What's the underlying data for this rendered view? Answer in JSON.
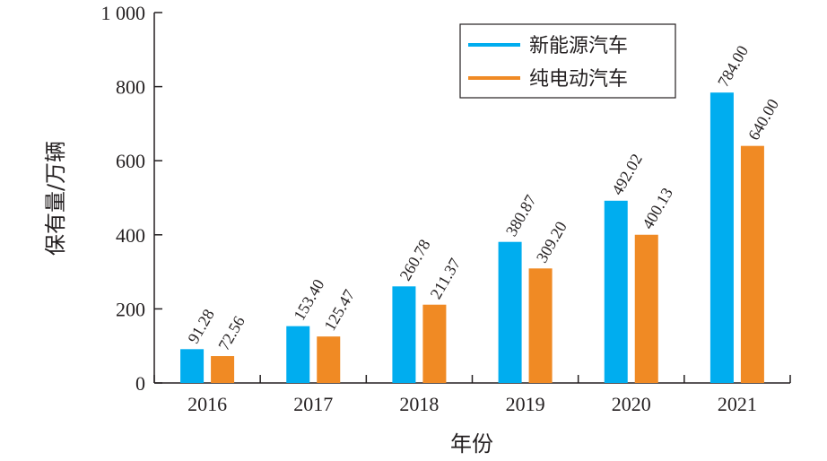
{
  "chart_data": {
    "type": "bar",
    "categories": [
      "2016",
      "2017",
      "2018",
      "2019",
      "2020",
      "2021"
    ],
    "series": [
      {
        "name": "新能源汽车",
        "color": "#00adef",
        "values": [
          91.28,
          153.4,
          260.78,
          380.87,
          492.02,
          784.0
        ],
        "labels": [
          "91.28",
          "153.40",
          "260.78",
          "380.87",
          "492.02",
          "784.00"
        ]
      },
      {
        "name": "纯电动汽车",
        "color": "#f08a24",
        "values": [
          72.56,
          125.47,
          211.37,
          309.2,
          400.13,
          640.0
        ],
        "labels": [
          "72.56",
          "125.47",
          "211.37",
          "309.20",
          "400.13",
          "640.00"
        ]
      }
    ],
    "xlabel": "年份",
    "ylabel": "保有量/万辆",
    "ylim": [
      0,
      1000
    ],
    "yticks": [
      0,
      200,
      400,
      600,
      800,
      1000
    ],
    "ytick_labels": [
      "0",
      "200",
      "400",
      "600",
      "800",
      "1 000"
    ],
    "legend_position": "top-right",
    "grid": false
  }
}
